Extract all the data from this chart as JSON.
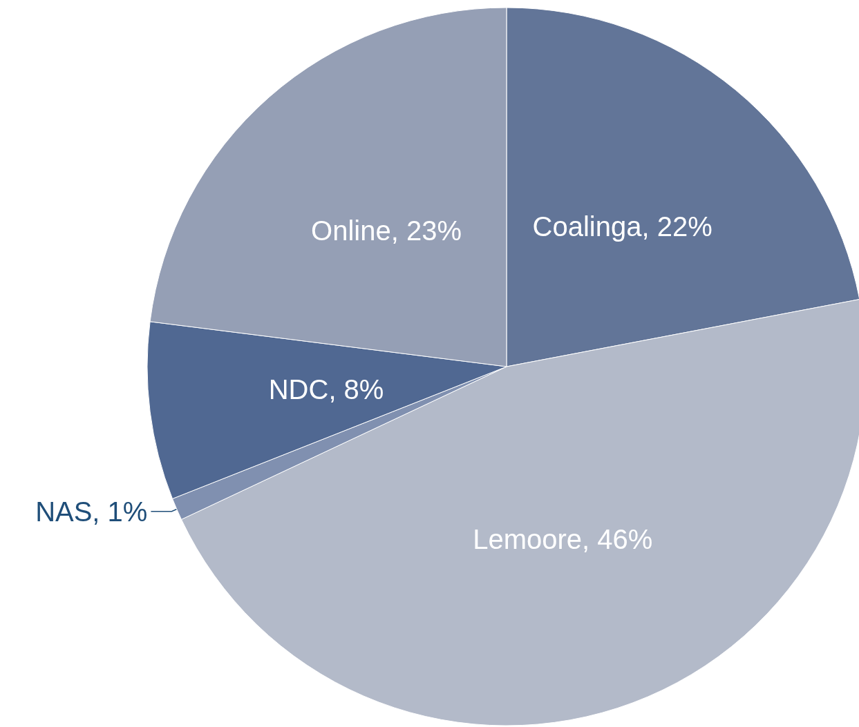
{
  "chart_data": {
    "type": "pie",
    "categories": [
      "Coalinga",
      "Lemoore",
      "NAS",
      "NDC",
      "Online"
    ],
    "values": [
      22,
      46,
      1,
      8,
      23
    ],
    "value_labels": [
      "22%",
      "46%",
      "1%",
      "8%",
      "23%"
    ],
    "colors": [
      "#627598",
      "#b3bac9",
      "#8090b0",
      "#506892",
      "#959fb5"
    ]
  }
}
